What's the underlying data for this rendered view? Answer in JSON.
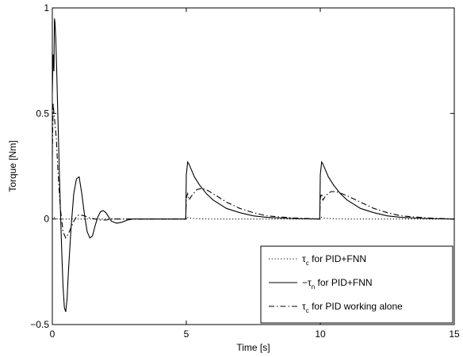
{
  "chart_data": {
    "type": "line",
    "xlabel": "Time [s]",
    "ylabel": "Torque [Nm]",
    "xlim": [
      0,
      15
    ],
    "ylim": [
      -0.5,
      1
    ],
    "xticks": [
      "0",
      "5",
      "10",
      "15"
    ],
    "yticks": [
      "−0.5",
      "0",
      "0.5",
      "1"
    ],
    "grid": false,
    "legend_position": "bottom-right",
    "series": [
      {
        "name": "τc for PID+FNN",
        "legend_symbol": "τ",
        "legend_subscript": "c",
        "legend_suffix": " for PID+FNN",
        "style": "dotted",
        "color": "#000000",
        "x": [
          0,
          0.05,
          0.1,
          0.2,
          0.5,
          1.0,
          2.0,
          4.0,
          5.0,
          5.02,
          5.1,
          5.5,
          6.0,
          7.0,
          10.0,
          10.02,
          10.1,
          10.5,
          11.0,
          12.0,
          15.0
        ],
        "y": [
          0,
          0.01,
          0.005,
          0,
          0,
          0,
          0,
          0,
          0,
          0.01,
          0.004,
          0.001,
          0,
          0,
          0,
          0.01,
          0.004,
          0.001,
          0,
          0,
          0
        ]
      },
      {
        "name": "−τn for PID+FNN",
        "legend_symbol": "−τ",
        "legend_subscript": "n",
        "legend_suffix": " for PID+FNN",
        "style": "solid",
        "color": "#000000",
        "x": [
          0,
          0.03,
          0.06,
          0.08,
          0.1,
          0.13,
          0.16,
          0.2,
          0.25,
          0.3,
          0.35,
          0.4,
          0.45,
          0.5,
          0.55,
          0.6,
          0.7,
          0.8,
          0.9,
          1.0,
          1.1,
          1.2,
          1.3,
          1.4,
          1.5,
          1.6,
          1.7,
          1.8,
          1.9,
          2.0,
          2.2,
          2.4,
          2.6,
          2.8,
          3.0,
          3.2,
          3.5,
          4.0,
          4.5,
          4.98,
          5.0,
          5.05,
          5.1,
          5.2,
          5.3,
          5.5,
          5.75,
          6.0,
          6.5,
          7.0,
          7.5,
          8.0,
          9.0,
          9.98,
          10.0,
          10.05,
          10.1,
          10.2,
          10.3,
          10.5,
          10.75,
          11.0,
          11.5,
          12.0,
          12.5,
          13.0,
          14.0,
          15.0
        ],
        "y": [
          0.6,
          0.78,
          0.7,
          0.95,
          0.93,
          0.85,
          0.72,
          0.52,
          0.28,
          0.05,
          -0.15,
          -0.32,
          -0.42,
          -0.44,
          -0.38,
          -0.25,
          -0.04,
          0.12,
          0.19,
          0.2,
          0.12,
          0.02,
          -0.06,
          -0.09,
          -0.08,
          -0.03,
          0.01,
          0.035,
          0.04,
          0.03,
          -0.01,
          -0.02,
          -0.015,
          -0.005,
          0,
          0,
          0,
          0,
          0,
          0,
          0.21,
          0.27,
          0.26,
          0.23,
          0.2,
          0.16,
          0.12,
          0.09,
          0.05,
          0.03,
          0.015,
          0.008,
          0.002,
          0,
          0.21,
          0.27,
          0.26,
          0.23,
          0.2,
          0.16,
          0.12,
          0.09,
          0.05,
          0.03,
          0.015,
          0.008,
          0.002,
          0
        ]
      },
      {
        "name": "τc for PID working alone",
        "legend_symbol": "τ",
        "legend_subscript": "c",
        "legend_suffix": " for PID working alone",
        "style": "dashdot",
        "color": "#000000",
        "x": [
          0,
          0.03,
          0.06,
          0.1,
          0.15,
          0.2,
          0.3,
          0.4,
          0.5,
          0.6,
          0.7,
          0.8,
          0.9,
          1.0,
          1.2,
          1.4,
          1.6,
          1.8,
          2.0,
          2.2,
          2.5,
          3.0,
          4.0,
          4.98,
          5.0,
          5.05,
          5.1,
          5.2,
          5.4,
          5.6,
          5.8,
          6.0,
          6.5,
          7.0,
          7.5,
          8.0,
          9.0,
          9.98,
          10.0,
          10.05,
          10.1,
          10.2,
          10.4,
          10.6,
          10.8,
          11.0,
          11.5,
          12.0,
          12.5,
          13.0,
          14.0,
          15.0
        ],
        "y": [
          0.3,
          0.55,
          0.5,
          0.45,
          0.38,
          0.25,
          0.05,
          -0.06,
          -0.09,
          -0.07,
          -0.04,
          -0.01,
          0.01,
          0.02,
          0.015,
          0.005,
          0,
          -0.005,
          -0.005,
          0,
          0,
          0,
          0,
          0,
          0.1,
          0.12,
          0.09,
          0.11,
          0.14,
          0.145,
          0.135,
          0.12,
          0.08,
          0.05,
          0.03,
          0.015,
          0.005,
          0,
          0.1,
          0.12,
          0.09,
          0.11,
          0.13,
          0.13,
          0.12,
          0.11,
          0.08,
          0.05,
          0.03,
          0.015,
          0.005,
          0
        ]
      }
    ]
  }
}
